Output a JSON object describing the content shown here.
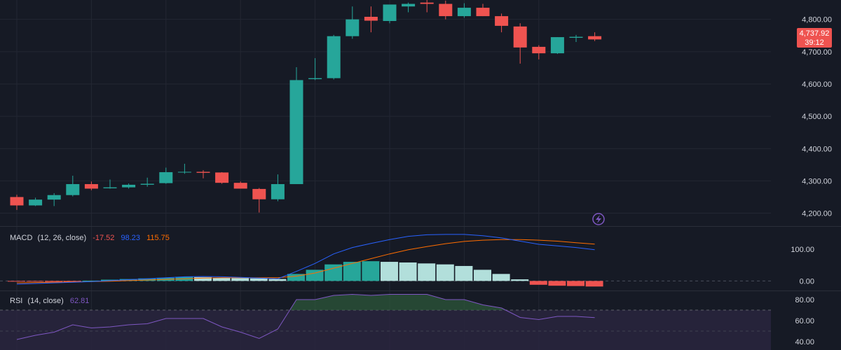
{
  "chart_data": {
    "type": "candlestick",
    "price": {
      "ylim": [
        4160,
        4860
      ],
      "ticks": [
        "4,200.00",
        "4,300.00",
        "4,400.00",
        "4,500.00",
        "4,600.00",
        "4,700.00",
        "4,800.00"
      ],
      "tick_values": [
        4200,
        4300,
        4400,
        4500,
        4600,
        4700,
        4800
      ],
      "last_price_label": "4,737.92",
      "countdown_label": "39:12",
      "candles": [
        {
          "o": 4250,
          "h": 4257,
          "l": 4210,
          "c": 4224
        },
        {
          "o": 4224,
          "h": 4248,
          "l": 4222,
          "c": 4242
        },
        {
          "o": 4242,
          "h": 4262,
          "l": 4222,
          "c": 4256
        },
        {
          "o": 4256,
          "h": 4316,
          "l": 4252,
          "c": 4290
        },
        {
          "o": 4290,
          "h": 4298,
          "l": 4271,
          "c": 4276
        },
        {
          "o": 4277,
          "h": 4304,
          "l": 4276,
          "c": 4280
        },
        {
          "o": 4280,
          "h": 4292,
          "l": 4276,
          "c": 4288
        },
        {
          "o": 4288,
          "h": 4310,
          "l": 4282,
          "c": 4291
        },
        {
          "o": 4293,
          "h": 4341,
          "l": 4291,
          "c": 4327
        },
        {
          "o": 4327,
          "h": 4353,
          "l": 4322,
          "c": 4328
        },
        {
          "o": 4328,
          "h": 4333,
          "l": 4308,
          "c": 4325
        },
        {
          "o": 4326,
          "h": 4327,
          "l": 4291,
          "c": 4294
        },
        {
          "o": 4294,
          "h": 4298,
          "l": 4276,
          "c": 4276
        },
        {
          "o": 4275,
          "h": 4278,
          "l": 4202,
          "c": 4243
        },
        {
          "o": 4243,
          "h": 4320,
          "l": 4237,
          "c": 4290
        },
        {
          "o": 4290,
          "h": 4652,
          "l": 4290,
          "c": 4612
        },
        {
          "o": 4615,
          "h": 4680,
          "l": 4612,
          "c": 4618
        },
        {
          "o": 4618,
          "h": 4752,
          "l": 4614,
          "c": 4748
        },
        {
          "o": 4748,
          "h": 4840,
          "l": 4740,
          "c": 4800
        },
        {
          "o": 4808,
          "h": 4840,
          "l": 4760,
          "c": 4796
        },
        {
          "o": 4795,
          "h": 4846,
          "l": 4788,
          "c": 4846
        },
        {
          "o": 4840,
          "h": 4852,
          "l": 4822,
          "c": 4848
        },
        {
          "o": 4852,
          "h": 4860,
          "l": 4822,
          "c": 4848
        },
        {
          "o": 4848,
          "h": 4858,
          "l": 4800,
          "c": 4810
        },
        {
          "o": 4810,
          "h": 4850,
          "l": 4805,
          "c": 4836
        },
        {
          "o": 4836,
          "h": 4848,
          "l": 4810,
          "c": 4810
        },
        {
          "o": 4810,
          "h": 4818,
          "l": 4760,
          "c": 4780
        },
        {
          "o": 4778,
          "h": 4788,
          "l": 4663,
          "c": 4713
        },
        {
          "o": 4715,
          "h": 4720,
          "l": 4676,
          "c": 4695
        },
        {
          "o": 4695,
          "h": 4745,
          "l": 4693,
          "c": 4745
        },
        {
          "o": 4743,
          "h": 4752,
          "l": 4730,
          "c": 4746
        },
        {
          "o": 4748,
          "h": 4760,
          "l": 4733,
          "c": 4737.92
        }
      ]
    },
    "macd": {
      "title": "MACD",
      "params": "(12, 26, close)",
      "values_text": [
        "-17.52",
        "98.23",
        "115.75"
      ],
      "ylim": [
        -30,
        170
      ],
      "ticks": [
        "100.00",
        "0.00"
      ],
      "tick_values": [
        100,
        0
      ],
      "histogram": [
        -2,
        -2,
        -3,
        -3,
        1,
        4,
        6,
        8,
        10,
        13,
        12,
        10,
        9,
        8,
        6,
        22,
        35,
        52,
        60,
        62,
        60,
        58,
        55,
        52,
        47,
        35,
        22,
        5,
        -12,
        -15,
        -16,
        -17.52
      ],
      "macd_line": [
        -10,
        -8,
        -6,
        -4,
        -2,
        1,
        4,
        7,
        10,
        13,
        14,
        13,
        11,
        9,
        7,
        30,
        55,
        85,
        105,
        118,
        130,
        140,
        145,
        146,
        146,
        142,
        135,
        125,
        115,
        110,
        105,
        98.23
      ],
      "signal_line": [
        -6,
        -5,
        -4,
        -3,
        -2,
        -1,
        1,
        3,
        5,
        7,
        9,
        10,
        10,
        10,
        10,
        15,
        25,
        40,
        55,
        70,
        85,
        98,
        108,
        117,
        124,
        128,
        130,
        130,
        128,
        125,
        120,
        115.75
      ]
    },
    "rsi": {
      "title": "RSI",
      "params": "(14, close)",
      "value_text": "62.81",
      "ylim": [
        32,
        88
      ],
      "ticks": [
        "80.00",
        "60.00",
        "40.00"
      ],
      "tick_values": [
        80,
        60,
        40
      ],
      "band": [
        30,
        70
      ],
      "values": [
        42,
        46,
        49,
        56,
        53,
        54,
        56,
        57,
        62,
        62,
        62,
        54,
        49,
        43,
        52,
        80,
        80,
        84,
        85,
        84,
        85,
        85,
        85,
        80,
        80,
        75,
        72,
        63,
        61,
        64,
        64,
        62.81
      ]
    },
    "colors": {
      "background": "#161a25",
      "grid": "#232733",
      "up": "#26a69a",
      "down": "#ef5350",
      "hist_up_strong": "#26a69a",
      "hist_up_weak": "#b2dfdb",
      "hist_down_strong": "#ef5350",
      "macd_line": "#2962ff",
      "signal_line": "#ff6d00",
      "rsi_line": "#7e57c2",
      "rsi_band": "#2a2640",
      "axis_text": "#d1d4dc",
      "separator": "#2a2e39"
    }
  },
  "icons": {
    "watermark": "lightning-bolt-icon"
  }
}
